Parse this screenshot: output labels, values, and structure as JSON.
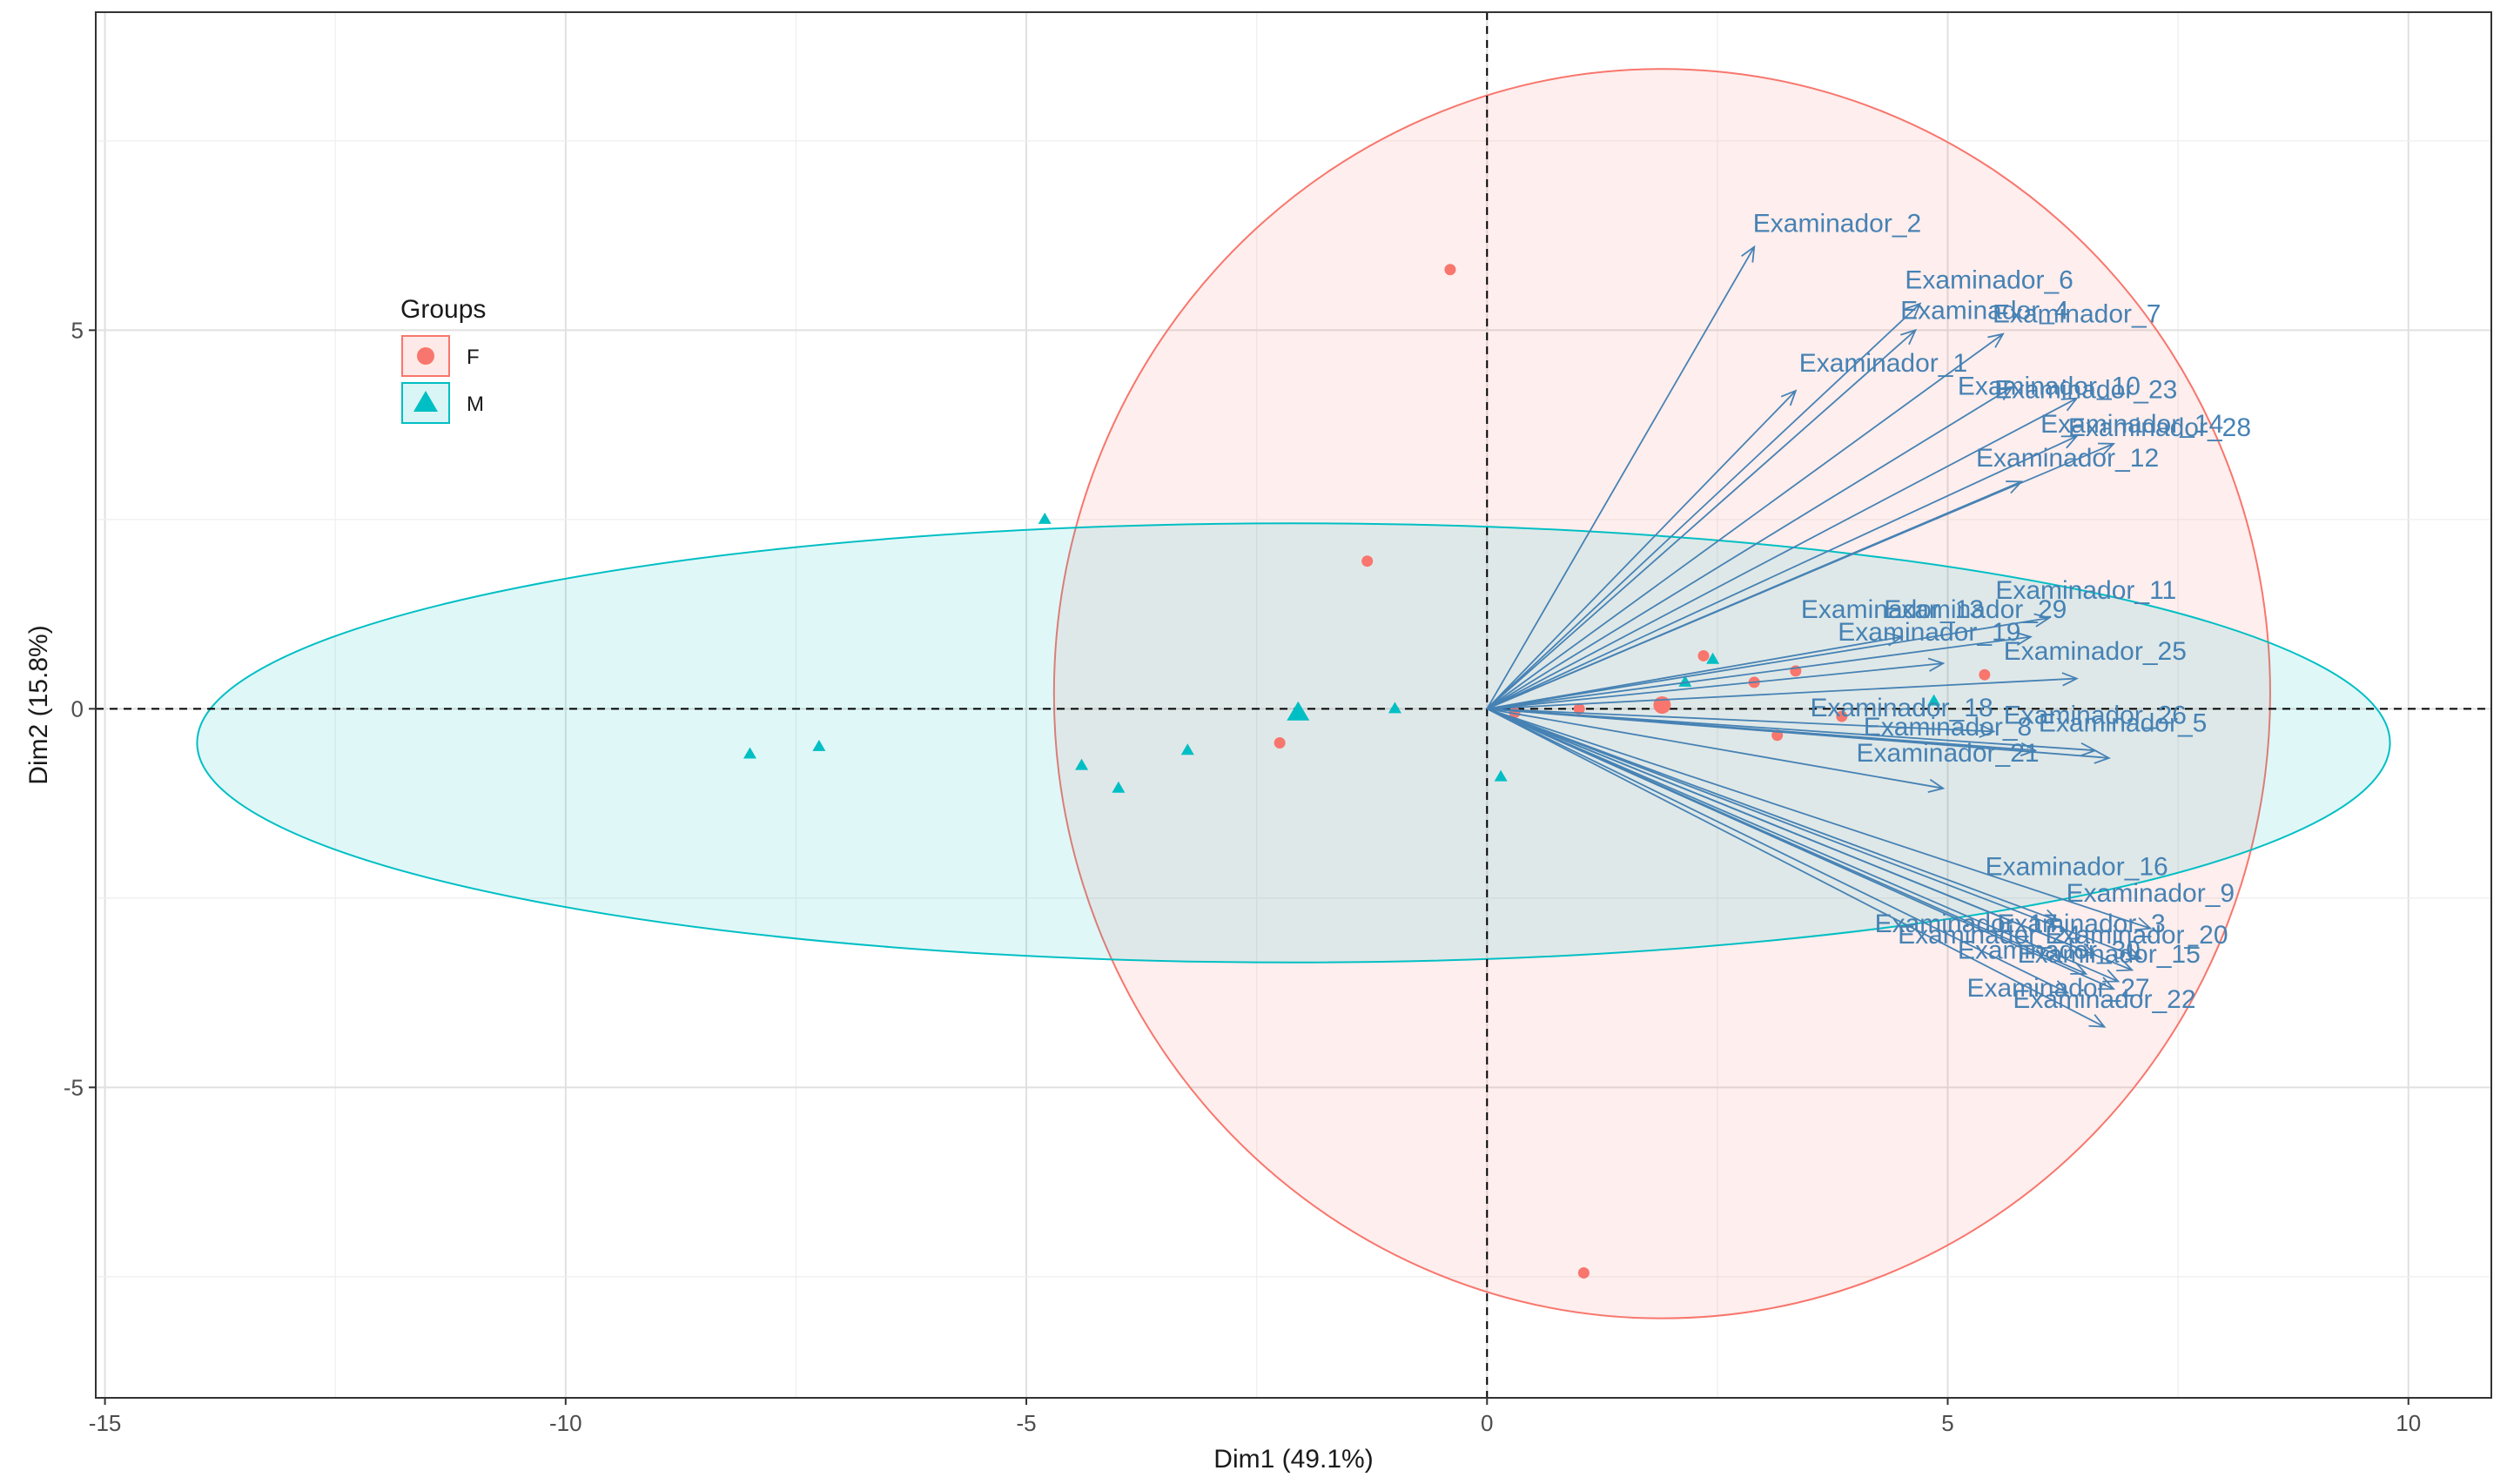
{
  "chart_data": {
    "type": "scatter",
    "subtype": "pca-biplot",
    "title": "",
    "xlabel": "Dim1 (49.1%)",
    "ylabel": "Dim2 (15.8%)",
    "xlim": [
      -15.1,
      10.9
    ],
    "ylim": [
      -9.1,
      9.2
    ],
    "xticks": [
      -15,
      -10,
      -5,
      0,
      5,
      10
    ],
    "yticks": [
      -5,
      0,
      5
    ],
    "grid": true,
    "reference_lines": {
      "x": 0,
      "y": 0,
      "style": "dashed"
    },
    "colors": {
      "F": "#f8766d",
      "M": "#00bfc4",
      "arrow": "#4682b4"
    },
    "legend": {
      "title": "Groups",
      "position": "top-left",
      "entries": [
        {
          "label": "F",
          "shape": "circle",
          "color": "#f8766d"
        },
        {
          "label": "M",
          "shape": "triangle",
          "color": "#00bfc4"
        }
      ]
    },
    "series": [
      {
        "name": "F",
        "shape": "circle",
        "points": [
          [
            -0.4,
            5.8
          ],
          [
            -1.3,
            1.95
          ],
          [
            -2.25,
            -0.45
          ],
          [
            1.05,
            -7.45
          ],
          [
            2.35,
            0.7
          ],
          [
            2.9,
            0.35
          ],
          [
            3.35,
            0.5
          ],
          [
            3.15,
            -0.35
          ],
          [
            3.85,
            -0.1
          ],
          [
            5.4,
            0.45
          ],
          [
            1.0,
            0.0
          ],
          [
            0.3,
            -0.05
          ]
        ],
        "centroid": [
          1.9,
          0.05
        ],
        "ellipse": {
          "center": [
            1.9,
            0.2
          ],
          "rx": 6.6,
          "ry": 8.25
        }
      },
      {
        "name": "M",
        "shape": "triangle",
        "points": [
          [
            -8.0,
            -0.6
          ],
          [
            -7.25,
            -0.5
          ],
          [
            -4.8,
            2.5
          ],
          [
            -4.4,
            -0.75
          ],
          [
            -4.0,
            -1.05
          ],
          [
            -3.25,
            -0.55
          ],
          [
            -1.0,
            0.0
          ],
          [
            0.15,
            -0.9
          ],
          [
            2.15,
            0.35
          ],
          [
            2.45,
            0.65
          ],
          [
            4.85,
            0.1
          ]
        ],
        "centroid": [
          -2.05,
          -0.05
        ],
        "ellipse": {
          "center": [
            -2.1,
            -0.45
          ],
          "rx": 11.9,
          "ry": 2.9
        }
      }
    ],
    "variables": [
      {
        "name": "Examinador_2",
        "x": 2.9,
        "y": 6.1
      },
      {
        "name": "Examinador_6",
        "x": 4.7,
        "y": 5.35
      },
      {
        "name": "Examinador_4",
        "x": 4.65,
        "y": 5.0
      },
      {
        "name": "Examinador_7",
        "x": 5.6,
        "y": 4.95
      },
      {
        "name": "Examinador_1",
        "x": 3.35,
        "y": 4.2
      },
      {
        "name": "Examinador_10",
        "x": 5.7,
        "y": 4.25
      },
      {
        "name": "Examinador_23",
        "x": 6.4,
        "y": 4.1
      },
      {
        "name": "Examinador_14",
        "x": 6.4,
        "y": 3.6
      },
      {
        "name": "Examinador_28",
        "x": 6.8,
        "y": 3.5
      },
      {
        "name": "Examinador_12",
        "x": 5.8,
        "y": 3.0
      },
      {
        "name": "Examinador_11",
        "x": 6.1,
        "y": 1.2
      },
      {
        "name": "Examinador_13",
        "x": 4.5,
        "y": 0.95
      },
      {
        "name": "Examinador_29",
        "x": 5.9,
        "y": 0.95
      },
      {
        "name": "Examinador_19",
        "x": 4.95,
        "y": 0.6
      },
      {
        "name": "Examinador_25",
        "x": 6.4,
        "y": 0.4
      },
      {
        "name": "Examinador_18",
        "x": 5.5,
        "y": -0.3
      },
      {
        "name": "Examinador_26",
        "x": 6.6,
        "y": -0.55
      },
      {
        "name": "Examinador_5",
        "x": 6.75,
        "y": -0.65
      },
      {
        "name": "Examinador_8",
        "x": 5.95,
        "y": -0.55
      },
      {
        "name": "Examinador_21",
        "x": 4.95,
        "y": -1.05
      },
      {
        "name": "Examinador_16",
        "x": 6.2,
        "y": -2.8
      },
      {
        "name": "Examinador_9",
        "x": 7.2,
        "y": -2.9
      },
      {
        "name": "Examinador_17",
        "x": 6.6,
        "y": -3.25
      },
      {
        "name": "Examinador_3",
        "x": 7.1,
        "y": -3.3
      },
      {
        "name": "Examinador_20",
        "x": 7.0,
        "y": -3.45
      },
      {
        "name": "Examinador_15",
        "x": 6.85,
        "y": -3.6
      },
      {
        "name": "Examinador_24",
        "x": 6.5,
        "y": -3.5
      },
      {
        "name": "Examinador_30",
        "x": 6.8,
        "y": -3.7
      },
      {
        "name": "Examinador_27",
        "x": 6.3,
        "y": -3.75
      },
      {
        "name": "Examinador_22",
        "x": 6.7,
        "y": -4.2
      }
    ],
    "variable_labels": [
      {
        "text": "Examinador_2",
        "x": 3.8,
        "y": 6.3
      },
      {
        "text": "Examinador_6",
        "x": 5.45,
        "y": 5.55
      },
      {
        "text": "Examinador_4",
        "x": 5.4,
        "y": 5.15
      },
      {
        "text": "Examinador_7",
        "x": 6.4,
        "y": 5.1
      },
      {
        "text": "Examinador_1",
        "x": 4.3,
        "y": 4.45
      },
      {
        "text": "Examinador_10",
        "x": 6.1,
        "y": 4.15
      },
      {
        "text": "Examinador_23",
        "x": 6.5,
        "y": 4.1
      },
      {
        "text": "Examinador_14",
        "x": 7.0,
        "y": 3.65
      },
      {
        "text": "Examinador_28",
        "x": 7.3,
        "y": 3.6
      },
      {
        "text": "Examinador_12",
        "x": 6.3,
        "y": 3.2
      },
      {
        "text": "Examinador_11",
        "x": 6.5,
        "y": 1.45
      },
      {
        "text": "Examinador_13",
        "x": 4.4,
        "y": 1.2
      },
      {
        "text": "Examinador_29",
        "x": 5.3,
        "y": 1.2
      },
      {
        "text": "Examinador_19",
        "x": 4.8,
        "y": 0.9
      },
      {
        "text": "Examinador_25",
        "x": 6.6,
        "y": 0.65
      },
      {
        "text": "Examinador_18",
        "x": 4.5,
        "y": -0.1
      },
      {
        "text": "Examinador_26",
        "x": 6.6,
        "y": -0.2
      },
      {
        "text": "Examinador_5",
        "x": 6.9,
        "y": -0.3
      },
      {
        "text": "Examinador_8",
        "x": 5.0,
        "y": -0.35
      },
      {
        "text": "Examinador_21",
        "x": 5.0,
        "y": -0.7
      },
      {
        "text": "Examinador_16",
        "x": 6.4,
        "y": -2.2
      },
      {
        "text": "Examinador_9",
        "x": 7.2,
        "y": -2.55
      },
      {
        "text": "Examinador_17",
        "x": 5.2,
        "y": -2.95
      },
      {
        "text": "Examinador_3",
        "x": 6.45,
        "y": -2.95
      },
      {
        "text": "Examinador_24",
        "x": 5.45,
        "y": -3.1
      },
      {
        "text": "Examinador_20",
        "x": 7.05,
        "y": -3.1
      },
      {
        "text": "Examinador_30",
        "x": 6.1,
        "y": -3.3
      },
      {
        "text": "Examinador_15",
        "x": 6.75,
        "y": -3.35
      },
      {
        "text": "Examinador_27",
        "x": 6.2,
        "y": -3.8
      },
      {
        "text": "Examinador_22",
        "x": 6.7,
        "y": -3.95
      }
    ]
  }
}
